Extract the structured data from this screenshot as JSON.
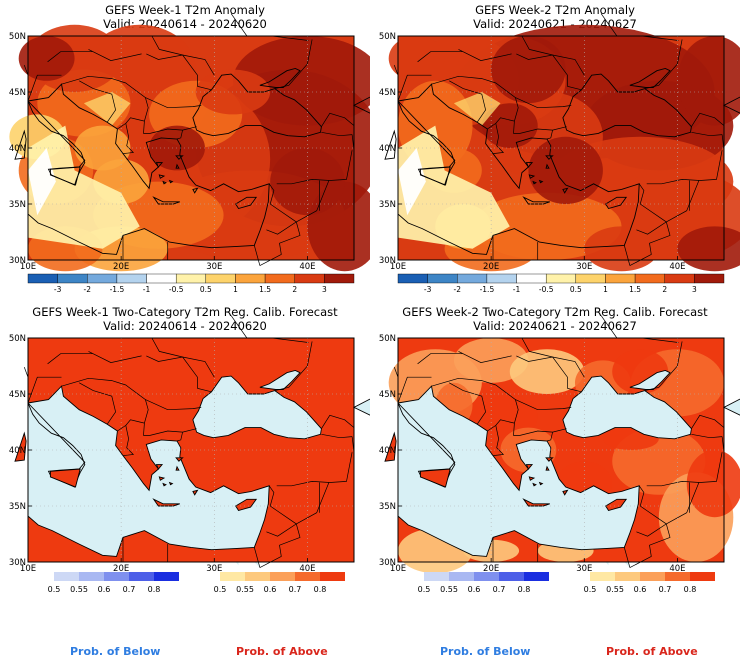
{
  "panels": [
    {
      "id": "p1",
      "title": "GEFS Week-1 T2m Anomaly",
      "valid": "Valid: 20240614 - 20240620",
      "kind": "anomaly"
    },
    {
      "id": "p2",
      "title": "GEFS Week-2 T2m Anomaly",
      "valid": "Valid: 20240621 - 20240627",
      "kind": "anomaly"
    },
    {
      "id": "p3",
      "title": "GEFS Week-1 Two-Category T2m Reg. Calib. Forecast",
      "valid": "Valid: 20240614 - 20240620",
      "kind": "prob"
    },
    {
      "id": "p4",
      "title": "GEFS Week-2 Two-Category T2m Reg. Calib. Forecast",
      "valid": "Valid: 20240621 - 20240627",
      "kind": "prob"
    }
  ],
  "lat_labels": [
    "50N",
    "45N",
    "40N",
    "35N",
    "30N"
  ],
  "lon_labels": [
    "10E",
    "20E",
    "30E",
    "40E"
  ],
  "anomaly_scale": {
    "labels": [
      "-3",
      "-2",
      "-1.5",
      "-1",
      "-0.5",
      "0.5",
      "1",
      "1.5",
      "2",
      "3"
    ],
    "colors": [
      "#1a5fb4",
      "#3d85c6",
      "#74a9dd",
      "#b4d3ee",
      "#ffffff",
      "#fff2aa",
      "#fdd36b",
      "#fba43c",
      "#f26b1d",
      "#d93b12",
      "#a11a0a"
    ]
  },
  "prob_below_scale": {
    "labels": [
      "0.5",
      "0.55",
      "0.6",
      "0.7",
      "0.8"
    ],
    "colors": [
      "#cdd8f5",
      "#a9b8f2",
      "#7f90ee",
      "#4d5fe8",
      "#1a2ee0"
    ]
  },
  "prob_above_scale": {
    "labels": [
      "0.5",
      "0.55",
      "0.6",
      "0.7",
      "0.8"
    ],
    "colors": [
      "#ffe8a3",
      "#fdc97d",
      "#fba05a",
      "#f56a2c",
      "#ee3a10"
    ]
  },
  "colors": {
    "sea": "#d8f0f5",
    "land_border": "#000000",
    "grid": "#b0b0b0"
  },
  "footer": {
    "below": "Prob. of Below",
    "above": "Prob. of Above",
    "below_color": "#2f7de1",
    "above_color": "#d9261c"
  }
}
